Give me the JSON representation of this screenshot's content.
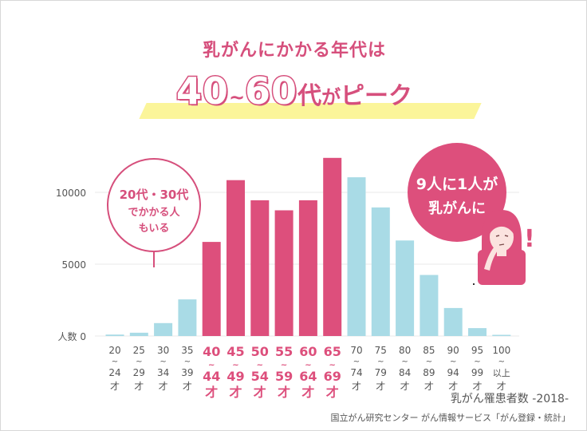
{
  "title": "乳がんにかかる年代は",
  "headline": {
    "part1": "40",
    "tilde": "~",
    "part2": "60",
    "dai": "代",
    "ga": "が",
    "peak": "ピーク"
  },
  "bubble_left": {
    "line1": "20代・30代",
    "line2": "でかかる人",
    "line3": "もいる"
  },
  "bubble_right": {
    "line1": "9人に1人が",
    "line2": "乳がんに",
    "exclaim": "!"
  },
  "source": {
    "title": "乳がん罹患者数 -2018-",
    "credit": "国立がん研究センター がん情報サービス「がん登録・統計」"
  },
  "colors": {
    "highlight_pink": "#dd4f7c",
    "light_blue": "#a9dbe6",
    "title_pink": "#d64f7c",
    "marker_yellow": "#fbf59a"
  },
  "chart_data": {
    "type": "bar",
    "ylabel": "人数",
    "ylim": [
      0,
      13000
    ],
    "yticks": [
      0,
      5000,
      10000
    ],
    "categories": [
      {
        "top": "20",
        "bottom": "24",
        "suffix": "才",
        "highlight": false
      },
      {
        "top": "25",
        "bottom": "29",
        "suffix": "才",
        "highlight": false
      },
      {
        "top": "30",
        "bottom": "34",
        "suffix": "才",
        "highlight": false
      },
      {
        "top": "35",
        "bottom": "39",
        "suffix": "才",
        "highlight": false
      },
      {
        "top": "40",
        "bottom": "44",
        "suffix": "才",
        "highlight": true
      },
      {
        "top": "45",
        "bottom": "49",
        "suffix": "才",
        "highlight": true
      },
      {
        "top": "50",
        "bottom": "54",
        "suffix": "才",
        "highlight": true
      },
      {
        "top": "55",
        "bottom": "59",
        "suffix": "才",
        "highlight": true
      },
      {
        "top": "60",
        "bottom": "64",
        "suffix": "才",
        "highlight": true
      },
      {
        "top": "65",
        "bottom": "69",
        "suffix": "才",
        "highlight": true
      },
      {
        "top": "70",
        "bottom": "74",
        "suffix": "才",
        "highlight": false
      },
      {
        "top": "75",
        "bottom": "79",
        "suffix": "才",
        "highlight": false
      },
      {
        "top": "80",
        "bottom": "84",
        "suffix": "才",
        "highlight": false
      },
      {
        "top": "85",
        "bottom": "89",
        "suffix": "才",
        "highlight": false
      },
      {
        "top": "90",
        "bottom": "94",
        "suffix": "才",
        "highlight": false
      },
      {
        "top": "95",
        "bottom": "99",
        "suffix": "才",
        "highlight": false
      },
      {
        "top": "100",
        "bottom": "以上",
        "suffix": "才",
        "highlight": false
      }
    ],
    "values": [
      100,
      230,
      900,
      2550,
      6550,
      10850,
      9450,
      8750,
      9450,
      12400,
      11050,
      8950,
      6650,
      4250,
      1950,
      550,
      80
    ]
  }
}
